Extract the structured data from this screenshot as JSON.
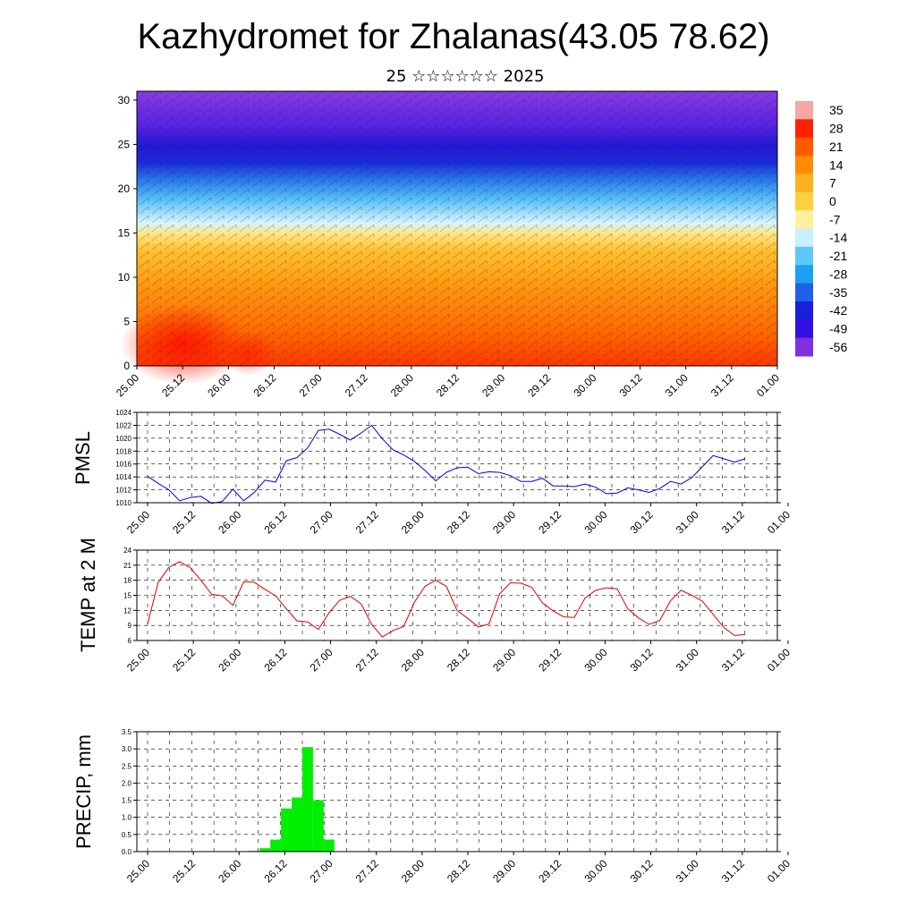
{
  "title": "Kazhydromet for Zhalanas(43.05 78.62)",
  "subtitle": "25 ☆☆☆☆☆☆ 2025",
  "time_labels": [
    "25.00",
    "25.12",
    "26.00",
    "26.12",
    "27.00",
    "27.12",
    "28.00",
    "28.12",
    "29.00",
    "29.12",
    "30.00",
    "30.12",
    "31.00",
    "31.12",
    "01.00"
  ],
  "chart_data": [
    {
      "type": "heatmap",
      "panel": "cross-section",
      "y_ticks": [
        0,
        5,
        10,
        15,
        20,
        25,
        30
      ],
      "ylim": [
        0,
        31
      ],
      "colorbar": {
        "labels": [
          "35",
          "28",
          "21",
          "14",
          "7",
          "0",
          "-7",
          "-14",
          "-21",
          "-28",
          "-35",
          "-42",
          "-49",
          "-56"
        ],
        "colors": [
          "#f7a6a6",
          "#ff2000",
          "#ff5a00",
          "#ff8c00",
          "#ffb020",
          "#ffd040",
          "#fff0a0",
          "#c8f0ff",
          "#60c8f8",
          "#1ea0f0",
          "#2060e8",
          "#1820d8",
          "#3010e0",
          "#8030e0"
        ]
      }
    },
    {
      "type": "line",
      "ylabel": "PMSL",
      "ylim": [
        1010,
        1024
      ],
      "y_ticks": [
        "1010",
        "1012",
        "1014",
        "1016",
        "1018",
        "1020",
        "1022",
        "1024"
      ],
      "color": "#0000dd",
      "values": [
        1014.1,
        1013.0,
        1012.0,
        1010.3,
        1010.8,
        1011.0,
        1009.9,
        1010.2,
        1012.1,
        1010.3,
        1011.6,
        1013.5,
        1013.2,
        1016.5,
        1017.0,
        1018.5,
        1021.2,
        1021.4,
        1020.6,
        1019.7,
        1020.8,
        1022.0,
        1019.9,
        1018.2,
        1017.4,
        1016.4,
        1015.0,
        1013.4,
        1014.7,
        1015.4,
        1015.5,
        1014.5,
        1014.8,
        1014.7,
        1014.2,
        1013.3,
        1013.3,
        1013.8,
        1012.6,
        1012.6,
        1012.5,
        1012.9,
        1012.4,
        1011.4,
        1011.5,
        1012.3,
        1012.0,
        1011.6,
        1012.2,
        1013.3,
        1012.9,
        1013.9,
        1015.6,
        1017.3,
        1016.8,
        1016.3,
        1016.8
      ]
    },
    {
      "type": "line",
      "ylabel": "TEMP at 2 M",
      "ylim": [
        6,
        24
      ],
      "y_ticks": [
        "6",
        "9",
        "12",
        "15",
        "18",
        "21",
        "24"
      ],
      "color": "#dd0000",
      "values": [
        9.3,
        17.6,
        20.6,
        21.7,
        20.5,
        18.0,
        15.2,
        14.9,
        13.0,
        17.7,
        17.6,
        16.2,
        14.9,
        12.3,
        9.9,
        9.7,
        8.2,
        11.5,
        14.0,
        14.8,
        13.3,
        9.2,
        6.7,
        8.0,
        8.8,
        13.6,
        16.8,
        18.0,
        16.8,
        12.0,
        10.4,
        8.7,
        9.3,
        15.3,
        17.5,
        17.4,
        16.6,
        13.5,
        11.9,
        10.7,
        10.6,
        14.5,
        16.0,
        16.5,
        16.3,
        12.3,
        10.5,
        9.2,
        10.0,
        13.9,
        16.0,
        15.0,
        13.8,
        11.2,
        8.6,
        7.0,
        7.2
      ]
    },
    {
      "type": "bar",
      "ylabel": "PRECIP, mm",
      "ylim": [
        0,
        3.5
      ],
      "y_ticks": [
        "0.0",
        "0.5",
        "1.0",
        "1.5",
        "2.0",
        "2.5",
        "3.0",
        "3.5"
      ],
      "color": "#00ee00",
      "values": [
        0,
        0,
        0,
        0,
        0,
        0,
        0,
        0,
        0,
        0.01,
        0.02,
        0.1,
        0.35,
        1.26,
        1.58,
        3.05,
        1.5,
        0.35,
        0,
        0,
        0,
        0,
        0,
        0,
        0,
        0,
        0,
        0,
        0,
        0,
        0,
        0,
        0,
        0,
        0,
        0,
        0,
        0,
        0,
        0,
        0,
        0,
        0,
        0,
        0,
        0,
        0,
        0,
        0,
        0,
        0,
        0,
        0,
        0,
        0,
        0,
        0
      ]
    }
  ]
}
